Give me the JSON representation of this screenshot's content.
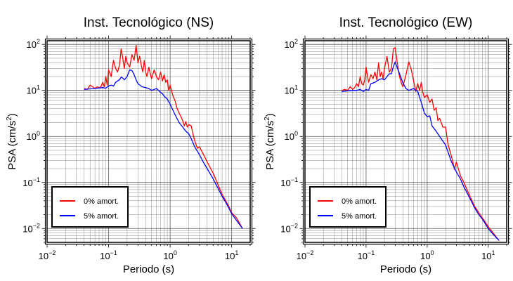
{
  "chart_data": [
    {
      "type": "line",
      "title": "Inst. Tecnológico (NS)",
      "xlabel": "Periodo (s)",
      "ylabel_base": "PSA (cm/s",
      "ylabel_exp": "2",
      "ylabel_close": ")",
      "xscale": "log",
      "yscale": "log",
      "xlim": [
        0.01,
        20
      ],
      "ylim": [
        0.005,
        120
      ],
      "grid": true,
      "legend_position": "bottom-left",
      "series": [
        {
          "name": "0% amort.",
          "color": "#ff0000",
          "x": [
            0.04,
            0.045,
            0.05,
            0.055,
            0.06,
            0.065,
            0.07,
            0.075,
            0.08,
            0.085,
            0.09,
            0.095,
            0.1,
            0.11,
            0.12,
            0.13,
            0.14,
            0.15,
            0.16,
            0.17,
            0.18,
            0.19,
            0.2,
            0.22,
            0.24,
            0.26,
            0.28,
            0.3,
            0.32,
            0.34,
            0.36,
            0.38,
            0.4,
            0.42,
            0.45,
            0.48,
            0.5,
            0.55,
            0.6,
            0.65,
            0.7,
            0.75,
            0.8,
            0.85,
            0.9,
            0.95,
            1.0,
            1.1,
            1.2,
            1.3,
            1.4,
            1.5,
            1.6,
            1.7,
            1.8,
            1.9,
            2.0,
            2.2,
            2.4,
            2.6,
            2.8,
            3.0,
            3.5,
            4.0,
            5.0,
            6.0,
            7.0,
            8.0,
            9.0,
            10.0,
            12.0,
            15.0
          ],
          "y": [
            11,
            10.5,
            13,
            12,
            11,
            12,
            11.5,
            12,
            15,
            12,
            20,
            13,
            28,
            20,
            45,
            30,
            25,
            35,
            80,
            50,
            30,
            55,
            40,
            32,
            60,
            45,
            95,
            40,
            55,
            35,
            25,
            45,
            25,
            20,
            32,
            22,
            18,
            28,
            20,
            17,
            25,
            16,
            22,
            15,
            17,
            10,
            13,
            8,
            6,
            4,
            3.2,
            2.7,
            2.2,
            1.7,
            2.1,
            1.6,
            1.8,
            1.7,
            1.0,
            0.7,
            0.55,
            0.6,
            0.4,
            0.28,
            0.16,
            0.09,
            0.055,
            0.04,
            0.03,
            0.022,
            0.017,
            0.01
          ]
        },
        {
          "name": "5% amort.",
          "color": "#0000ff",
          "x": [
            0.04,
            0.05,
            0.06,
            0.07,
            0.08,
            0.09,
            0.1,
            0.11,
            0.12,
            0.13,
            0.14,
            0.15,
            0.16,
            0.17,
            0.18,
            0.2,
            0.22,
            0.24,
            0.26,
            0.28,
            0.3,
            0.35,
            0.4,
            0.45,
            0.5,
            0.55,
            0.6,
            0.65,
            0.7,
            0.75,
            0.8,
            0.9,
            1.0,
            1.2,
            1.4,
            1.6,
            1.8,
            2.0,
            2.2,
            2.5,
            3.0,
            3.5,
            4.0,
            5.0,
            6.0,
            7.0,
            8.0,
            9.0,
            10.0,
            12.0,
            15.0
          ],
          "y": [
            10.5,
            10.8,
            11,
            11.3,
            11.5,
            11.2,
            12.5,
            13,
            12.5,
            15,
            16,
            17,
            19.5,
            18.5,
            17,
            20,
            28,
            27,
            22,
            17,
            14,
            12,
            11.5,
            11,
            10,
            10.5,
            11,
            10,
            9,
            8.5,
            7.5,
            6.5,
            5,
            3,
            2,
            1.6,
            1.3,
            1.15,
            0.9,
            0.6,
            0.4,
            0.27,
            0.2,
            0.12,
            0.075,
            0.05,
            0.037,
            0.028,
            0.021,
            0.015,
            0.01
          ]
        }
      ]
    },
    {
      "type": "line",
      "title": "Inst. Tecnológico (EW)",
      "xlabel": "Periodo (s)",
      "ylabel_base": "PSA (cm/s",
      "ylabel_exp": "2",
      "ylabel_close": ")",
      "xscale": "log",
      "yscale": "log",
      "xlim": [
        0.01,
        20
      ],
      "ylim": [
        0.005,
        120
      ],
      "grid": true,
      "legend_position": "bottom-left",
      "series": [
        {
          "name": "0% amort.",
          "color": "#ff0000",
          "x": [
            0.04,
            0.045,
            0.05,
            0.055,
            0.06,
            0.065,
            0.07,
            0.075,
            0.08,
            0.085,
            0.09,
            0.095,
            0.1,
            0.11,
            0.12,
            0.13,
            0.14,
            0.15,
            0.16,
            0.17,
            0.18,
            0.19,
            0.2,
            0.22,
            0.24,
            0.26,
            0.28,
            0.3,
            0.32,
            0.34,
            0.36,
            0.38,
            0.4,
            0.45,
            0.5,
            0.55,
            0.6,
            0.65,
            0.7,
            0.75,
            0.8,
            0.85,
            0.9,
            1.0,
            1.1,
            1.2,
            1.3,
            1.4,
            1.5,
            1.6,
            1.8,
            2.0,
            2.2,
            2.4,
            2.6,
            2.8,
            3.0,
            3.5,
            4.0,
            5.0,
            6.0,
            7.0,
            8.0,
            10.0,
            12.0,
            15.0
          ],
          "y": [
            10,
            10.5,
            10,
            12,
            10.5,
            11.5,
            14,
            12,
            20,
            14,
            13,
            17,
            32,
            15,
            22,
            18,
            25,
            17,
            40,
            20,
            25,
            18,
            30,
            55,
            25,
            30,
            80,
            85,
            45,
            25,
            18,
            14,
            12,
            22,
            42,
            28,
            16,
            9.5,
            14,
            10,
            15,
            9,
            7,
            8,
            5.5,
            6.5,
            3.7,
            4.2,
            2.2,
            2.5,
            1.6,
            1.6,
            0.65,
            0.45,
            0.3,
            0.19,
            0.28,
            0.14,
            0.1,
            0.05,
            0.03,
            0.022,
            0.017,
            0.011,
            0.008,
            0.0055
          ]
        },
        {
          "name": "5% amort.",
          "color": "#0000ff",
          "x": [
            0.04,
            0.05,
            0.06,
            0.07,
            0.08,
            0.09,
            0.1,
            0.11,
            0.12,
            0.14,
            0.16,
            0.18,
            0.2,
            0.22,
            0.24,
            0.26,
            0.28,
            0.3,
            0.32,
            0.35,
            0.4,
            0.45,
            0.5,
            0.55,
            0.6,
            0.65,
            0.7,
            0.8,
            0.9,
            1.0,
            1.1,
            1.2,
            1.4,
            1.6,
            1.8,
            2.0,
            2.2,
            2.5,
            3.0,
            3.5,
            4.0,
            5.0,
            6.0,
            7.0,
            8.0,
            10.0,
            12.0,
            15.0
          ],
          "y": [
            9.5,
            9.8,
            10,
            10,
            10.5,
            9.5,
            10.5,
            10,
            14,
            15,
            17,
            18,
            17,
            20,
            23,
            23,
            33,
            42,
            32,
            24,
            14.5,
            11,
            10,
            10.5,
            11,
            10,
            9.5,
            5.5,
            3.2,
            2.7,
            2.8,
            1.7,
            1.3,
            1.0,
            0.8,
            0.65,
            0.45,
            0.28,
            0.17,
            0.12,
            0.08,
            0.045,
            0.028,
            0.02,
            0.016,
            0.01,
            0.0075,
            0.0055
          ]
        }
      ]
    }
  ],
  "x_ticks": [
    {
      "base": "10",
      "exp": "−2"
    },
    {
      "base": "10",
      "exp": "−1"
    },
    {
      "base": "10",
      "exp": "0"
    },
    {
      "base": "10",
      "exp": "1"
    }
  ],
  "y_ticks": [
    {
      "base": "10",
      "exp": "−2"
    },
    {
      "base": "10",
      "exp": "−1"
    },
    {
      "base": "10",
      "exp": "0"
    },
    {
      "base": "10",
      "exp": "1"
    },
    {
      "base": "10",
      "exp": "2"
    }
  ]
}
